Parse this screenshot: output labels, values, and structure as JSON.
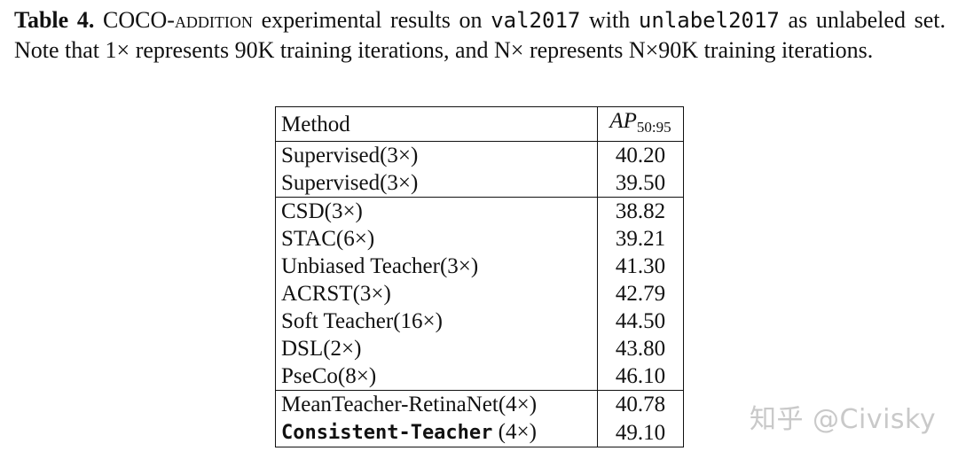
{
  "caption": {
    "label": "Table 4.",
    "part1": "COCO-",
    "part2": "addition",
    "part3": " experimental results on ",
    "mono1": "val2017",
    "part4": " with ",
    "mono2": "unlabel2017",
    "part5": " as unlabeled set. Note that 1× represents 90K training iterations, and N× represents N×90K training iterations."
  },
  "table": {
    "headers": {
      "method": "Method",
      "ap_main": "AP",
      "ap_sub": "50:95"
    },
    "rows": [
      {
        "method": "Supervised(3×)",
        "ap": "40.20"
      },
      {
        "method": "Supervised(3×)",
        "ap": "39.50"
      },
      {
        "method": "CSD(3×)",
        "ap": "38.82"
      },
      {
        "method": "STAC(6×)",
        "ap": "39.21"
      },
      {
        "method": "Unbiased Teacher(3×)",
        "ap": "41.30"
      },
      {
        "method": "ACRST(3×)",
        "ap": "42.79"
      },
      {
        "method": "Soft Teacher(16×)",
        "ap": "44.50"
      },
      {
        "method": "DSL(2×)",
        "ap": "43.80"
      },
      {
        "method": "PseCo(8×)",
        "ap": "46.10"
      },
      {
        "method": "MeanTeacher-RetinaNet(4×)",
        "ap": "40.78"
      },
      {
        "method_mono": "Consistent-Teacher",
        "method_suffix": " (4×)",
        "ap": "49.10"
      }
    ]
  },
  "watermark": "知乎 @Civisky"
}
